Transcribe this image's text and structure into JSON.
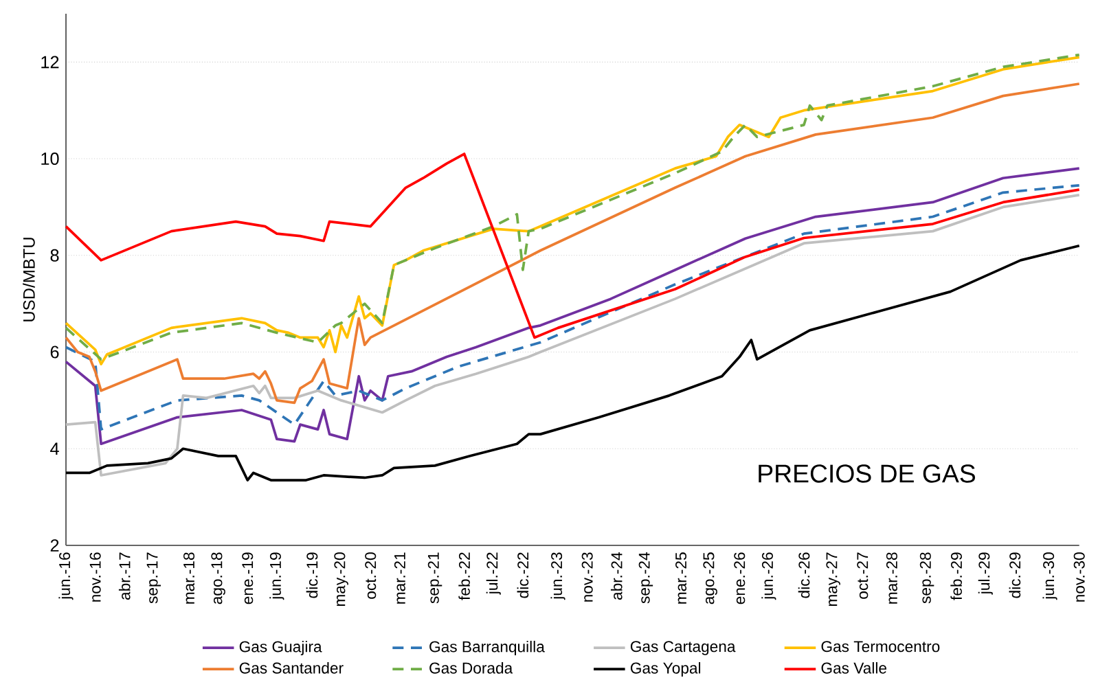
{
  "chart_data": {
    "type": "line",
    "ylabel": "USD/MBTU",
    "annotations": [
      "PRECIOS DE GAS"
    ],
    "xlim": [
      "2016-06",
      "2030-11"
    ],
    "ylim": [
      2,
      13
    ],
    "yticks": [
      2,
      4,
      6,
      8,
      10,
      12
    ],
    "xticks": [
      {
        "value": "2016-06",
        "label": "jun.-16"
      },
      {
        "value": "2016-11",
        "label": "nov.-16"
      },
      {
        "value": "2017-04",
        "label": "abr.-17"
      },
      {
        "value": "2017-09",
        "label": "sep.-17"
      },
      {
        "value": "2018-03",
        "label": "mar.-18"
      },
      {
        "value": "2018-08",
        "label": "ago.-18"
      },
      {
        "value": "2019-01",
        "label": "ene.-19"
      },
      {
        "value": "2019-06",
        "label": "jun.-19"
      },
      {
        "value": "2019-12",
        "label": "dic.-19"
      },
      {
        "value": "2020-05",
        "label": "may.-20"
      },
      {
        "value": "2020-10",
        "label": "oct.-20"
      },
      {
        "value": "2021-03",
        "label": "mar.-21"
      },
      {
        "value": "2021-09",
        "label": "sep.-21"
      },
      {
        "value": "2022-02",
        "label": "feb.-22"
      },
      {
        "value": "2022-07",
        "label": "jul.-22"
      },
      {
        "value": "2022-12",
        "label": "dic.-22"
      },
      {
        "value": "2023-06",
        "label": "jun.-23"
      },
      {
        "value": "2023-11",
        "label": "nov.-23"
      },
      {
        "value": "2024-04",
        "label": "abr.-24"
      },
      {
        "value": "2024-09",
        "label": "sep.-24"
      },
      {
        "value": "2025-03",
        "label": "mar.-25"
      },
      {
        "value": "2025-08",
        "label": "ago.-25"
      },
      {
        "value": "2026-01",
        "label": "ene.-26"
      },
      {
        "value": "2026-06",
        "label": "jun.-26"
      },
      {
        "value": "2026-12",
        "label": "dic.-26"
      },
      {
        "value": "2027-05",
        "label": "may.-27"
      },
      {
        "value": "2027-10",
        "label": "oct.-27"
      },
      {
        "value": "2028-03",
        "label": "mar.-28"
      },
      {
        "value": "2028-09",
        "label": "sep.-28"
      },
      {
        "value": "2029-02",
        "label": "feb.-29"
      },
      {
        "value": "2029-07",
        "label": "jul.-29"
      },
      {
        "value": "2029-12",
        "label": "dic.-29"
      },
      {
        "value": "2030-06",
        "label": "jun.-30"
      },
      {
        "value": "2030-11",
        "label": "nov.-30"
      }
    ],
    "grid": "y",
    "legend": "bottom",
    "marker": "none",
    "series": [
      {
        "name": "Gas Guajira",
        "color": "#7030a0",
        "line_style": "solid",
        "x": [
          "2016-06",
          "2016-11",
          "2016-12",
          "2018-01",
          "2018-12",
          "2019-05",
          "2019-06",
          "2019-09",
          "2019-10",
          "2020-01",
          "2020-02",
          "2020-03",
          "2020-06",
          "2020-08",
          "2020-09",
          "2020-10",
          "2020-12",
          "2021-01",
          "2021-05",
          "2021-11",
          "2022-04",
          "2023-01",
          "2023-03",
          "2024-03",
          "2025-02",
          "2026-02",
          "2027-02",
          "2028-10",
          "2029-10",
          "2030-11"
        ],
        "values": [
          5.8,
          5.3,
          4.1,
          4.65,
          4.8,
          4.6,
          4.2,
          4.15,
          4.5,
          4.4,
          4.8,
          4.3,
          4.2,
          5.5,
          5.0,
          5.2,
          5.0,
          5.5,
          5.6,
          5.9,
          6.1,
          6.5,
          6.55,
          7.1,
          7.7,
          8.35,
          8.8,
          9.1,
          9.6,
          9.8
        ]
      },
      {
        "name": "Gas Barranquilla",
        "color": "#2e75b6",
        "line_style": "dashed",
        "x": [
          "2016-06",
          "2016-11",
          "2016-12",
          "2018-01",
          "2018-12",
          "2019-03",
          "2019-09",
          "2020-02",
          "2020-04",
          "2020-08",
          "2020-12",
          "2021-04",
          "2022-01",
          "2023-03",
          "2025-02",
          "2026-12",
          "2028-10",
          "2029-10",
          "2030-11"
        ],
        "values": [
          6.1,
          5.8,
          4.4,
          5.0,
          5.1,
          5.0,
          4.5,
          5.4,
          5.1,
          5.2,
          5.0,
          5.25,
          5.7,
          6.2,
          7.4,
          8.45,
          8.8,
          9.3,
          9.45
        ]
      },
      {
        "name": "Gas Cartagena",
        "color": "#bfbfbf",
        "line_style": "solid",
        "x": [
          "2016-06",
          "2016-11",
          "2016-12",
          "2017-11",
          "2018-01",
          "2018-02",
          "2018-06",
          "2019-02",
          "2019-03",
          "2019-04",
          "2019-05",
          "2019-09",
          "2020-01",
          "2020-05",
          "2020-12",
          "2021-04",
          "2021-09",
          "2022-04",
          "2023-01",
          "2023-03",
          "2025-02",
          "2026-12",
          "2028-10",
          "2029-10",
          "2030-11"
        ],
        "values": [
          4.5,
          4.55,
          3.45,
          3.7,
          4.0,
          5.1,
          5.05,
          5.3,
          5.15,
          5.3,
          5.05,
          5.05,
          5.2,
          5.0,
          4.75,
          5.0,
          5.3,
          5.55,
          5.9,
          6.0,
          7.1,
          8.25,
          8.5,
          9.0,
          9.25
        ]
      },
      {
        "name": "Gas Termocentro",
        "color": "#ffc000",
        "line_style": "solid",
        "x": [
          "2016-06",
          "2016-11",
          "2016-12",
          "2017-01",
          "2017-12",
          "2018-12",
          "2019-04",
          "2019-06",
          "2019-08",
          "2019-10",
          "2020-01",
          "2020-02",
          "2020-03",
          "2020-04",
          "2020-05",
          "2020-06",
          "2020-08",
          "2020-09",
          "2020-10",
          "2020-12",
          "2021-02",
          "2021-04",
          "2021-07",
          "2022-07",
          "2023-01",
          "2023-03",
          "2025-02",
          "2025-09",
          "2025-11",
          "2026-01",
          "2026-06",
          "2026-08",
          "2026-12",
          "2028-10",
          "2029-10",
          "2030-11"
        ],
        "values": [
          6.6,
          6.05,
          5.75,
          5.95,
          6.5,
          6.7,
          6.6,
          6.45,
          6.4,
          6.3,
          6.3,
          6.1,
          6.45,
          6.0,
          6.55,
          6.3,
          7.15,
          6.7,
          6.8,
          6.55,
          7.8,
          7.9,
          8.1,
          8.55,
          8.5,
          8.6,
          9.8,
          10.05,
          10.45,
          10.7,
          10.45,
          10.85,
          11.0,
          11.4,
          11.85,
          12.1
        ]
      },
      {
        "name": "Gas Santander",
        "color": "#ed7d31",
        "line_style": "solid",
        "x": [
          "2016-06",
          "2016-08",
          "2016-10",
          "2016-11",
          "2016-12",
          "2018-01",
          "2018-02",
          "2018-09",
          "2019-02",
          "2019-03",
          "2019-04",
          "2019-05",
          "2019-06",
          "2019-09",
          "2019-10",
          "2019-12",
          "2020-02",
          "2020-03",
          "2020-06",
          "2020-08",
          "2020-09",
          "2020-10",
          "2023-03",
          "2025-02",
          "2026-02",
          "2027-02",
          "2028-10",
          "2029-10",
          "2030-11"
        ],
        "values": [
          6.3,
          6.0,
          5.9,
          5.6,
          5.2,
          5.85,
          5.45,
          5.45,
          5.55,
          5.45,
          5.6,
          5.35,
          5.0,
          4.95,
          5.25,
          5.4,
          5.85,
          5.35,
          5.25,
          6.7,
          6.15,
          6.3,
          8.1,
          9.4,
          10.05,
          10.5,
          10.85,
          11.3,
          11.55
        ]
      },
      {
        "name": "Gas Dorada",
        "color": "#70ad47",
        "line_style": "dashed",
        "x": [
          "2016-06",
          "2016-12",
          "2017-12",
          "2018-12",
          "2019-06",
          "2020-01",
          "2020-04",
          "2020-05",
          "2020-09",
          "2020-12",
          "2021-02",
          "2021-09",
          "2022-07",
          "2022-11",
          "2022-12",
          "2023-01",
          "2023-03",
          "2025-02",
          "2025-10",
          "2025-12",
          "2026-02",
          "2026-04",
          "2026-12",
          "2027-01",
          "2027-03",
          "2027-04",
          "2028-10",
          "2029-10",
          "2030-11"
        ],
        "values": [
          6.5,
          5.85,
          6.4,
          6.6,
          6.4,
          6.2,
          6.55,
          6.6,
          7.0,
          6.6,
          7.8,
          8.15,
          8.6,
          8.85,
          7.7,
          8.5,
          8.55,
          9.7,
          10.15,
          10.45,
          10.7,
          10.45,
          10.7,
          11.1,
          10.8,
          11.1,
          11.5,
          11.9,
          12.15
        ]
      },
      {
        "name": "Gas Yopal",
        "color": "#000000",
        "line_style": "solid",
        "x": [
          "2016-06",
          "2016-10",
          "2017-01",
          "2017-08",
          "2017-12",
          "2018-02",
          "2018-08",
          "2018-11",
          "2019-01",
          "2019-02",
          "2019-05",
          "2019-11",
          "2020-02",
          "2020-09",
          "2020-12",
          "2021-02",
          "2021-09",
          "2022-03",
          "2022-11",
          "2023-01",
          "2023-03",
          "2024-01",
          "2025-01",
          "2025-10",
          "2026-01",
          "2026-03",
          "2026-04",
          "2027-01",
          "2028-01",
          "2029-01",
          "2030-01",
          "2030-11"
        ],
        "values": [
          3.5,
          3.5,
          3.65,
          3.7,
          3.8,
          4.0,
          3.85,
          3.85,
          3.35,
          3.5,
          3.35,
          3.35,
          3.45,
          3.4,
          3.45,
          3.6,
          3.65,
          3.85,
          4.1,
          4.3,
          4.3,
          4.65,
          5.1,
          5.5,
          5.9,
          6.25,
          5.85,
          6.45,
          6.85,
          7.25,
          7.9,
          8.2
        ]
      },
      {
        "name": "Gas Valle",
        "color": "#ff0000",
        "line_style": "solid",
        "x": [
          "2016-06",
          "2016-12",
          "2017-12",
          "2018-11",
          "2019-04",
          "2019-06",
          "2019-10",
          "2020-02",
          "2020-03",
          "2020-10",
          "2021-04",
          "2021-07",
          "2021-11",
          "2022-02",
          "2023-02",
          "2023-06",
          "2025-02",
          "2026-02",
          "2026-12",
          "2028-10",
          "2029-10",
          "2030-11"
        ],
        "values": [
          8.6,
          7.9,
          8.5,
          8.7,
          8.6,
          8.45,
          8.4,
          8.3,
          8.7,
          8.6,
          9.4,
          9.6,
          9.9,
          10.1,
          6.3,
          6.5,
          7.3,
          7.97,
          8.36,
          8.65,
          9.1,
          9.36
        ]
      }
    ]
  }
}
